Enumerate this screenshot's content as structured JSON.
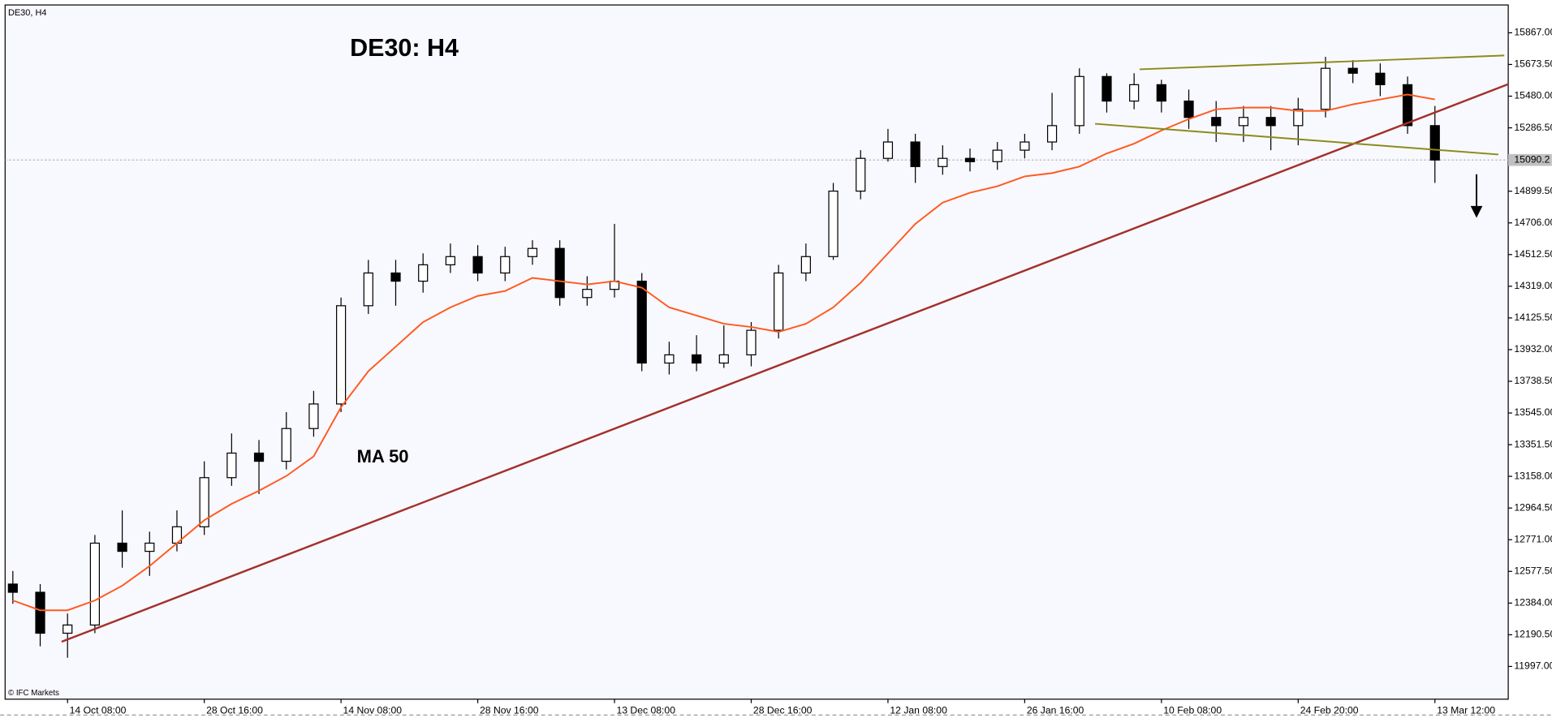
{
  "chart_data": {
    "type": "candlestick",
    "title": "DE30: H4",
    "symbol_label": "DE30, H4",
    "source": "© IFC Markets",
    "categories": [
      null,
      null,
      "14 Oct 08:00",
      null,
      null,
      null,
      null,
      "28 Oct 16:00",
      null,
      null,
      null,
      null,
      "14 Nov 08:00",
      null,
      null,
      null,
      null,
      "28 Nov 16:00",
      null,
      null,
      null,
      null,
      "13 Dec 08:00",
      null,
      null,
      null,
      null,
      "28 Dec 16:00",
      null,
      null,
      null,
      null,
      "12 Jan 08:00",
      null,
      null,
      null,
      null,
      "26 Jan 16:00",
      null,
      null,
      null,
      null,
      "10 Feb 08:00",
      null,
      null,
      null,
      null,
      "24 Feb 20:00",
      null,
      null,
      null,
      null,
      "13 Mar 12:00"
    ],
    "open": [
      12500,
      12450,
      12200,
      12250,
      12750,
      12700,
      12750,
      12850,
      13150,
      13300,
      13250,
      13450,
      13600,
      14200,
      14400,
      14350,
      14450,
      14500,
      14400,
      14500,
      14550,
      14250,
      14300,
      14350,
      13850,
      13900,
      13850,
      13900,
      14050,
      14400,
      14500,
      14900,
      15100,
      15200,
      15050,
      15100,
      15080,
      15150,
      15200,
      15300,
      15600,
      15450,
      15550,
      15450,
      15350,
      15300,
      15350,
      15300,
      15400,
      15650,
      15620,
      15550,
      15300
    ],
    "high": [
      12580,
      12500,
      12320,
      12800,
      12950,
      12820,
      12950,
      13250,
      13420,
      13380,
      13550,
      13680,
      14250,
      14480,
      14480,
      14520,
      14580,
      14570,
      14560,
      14600,
      14600,
      14380,
      14700,
      14400,
      13980,
      14020,
      14080,
      14100,
      14450,
      14580,
      14950,
      15150,
      15280,
      15250,
      15180,
      15160,
      15200,
      15250,
      15500,
      15650,
      15620,
      15620,
      15580,
      15520,
      15450,
      15420,
      15420,
      15470,
      15720,
      15700,
      15680,
      15600,
      15420
    ],
    "low": [
      12380,
      12120,
      12050,
      12200,
      12600,
      12550,
      12700,
      12800,
      13100,
      13050,
      13200,
      13400,
      13550,
      14150,
      14200,
      14280,
      14400,
      14350,
      14350,
      14450,
      14200,
      14200,
      14250,
      13800,
      13780,
      13800,
      13820,
      13830,
      14000,
      14350,
      14480,
      14850,
      15080,
      14950,
      15000,
      15020,
      15030,
      15100,
      15150,
      15250,
      15380,
      15400,
      15380,
      15280,
      15200,
      15200,
      15150,
      15180,
      15350,
      15560,
      15480,
      15250,
      14950
    ],
    "close": [
      12450,
      12200,
      12250,
      12750,
      12700,
      12750,
      12850,
      13150,
      13300,
      13250,
      13450,
      13600,
      14200,
      14400,
      14350,
      14450,
      14500,
      14400,
      14500,
      14550,
      14250,
      14300,
      14350,
      13850,
      13900,
      13850,
      13900,
      14050,
      14400,
      14500,
      14900,
      15100,
      15200,
      15050,
      15100,
      15080,
      15150,
      15200,
      15300,
      15600,
      15450,
      15550,
      15450,
      15350,
      15300,
      15350,
      15300,
      15400,
      15650,
      15620,
      15550,
      15300,
      15090
    ],
    "up_color": "#ffffff",
    "down_color": "#000000",
    "series": [
      {
        "name": "MA 50",
        "color": "#ff5a1e",
        "values": [
          12400,
          12340,
          12340,
          12400,
          12490,
          12610,
          12750,
          12890,
          12990,
          13070,
          13160,
          13280,
          13580,
          13800,
          13950,
          14100,
          14190,
          14260,
          14290,
          14370,
          14350,
          14330,
          14350,
          14310,
          14190,
          14140,
          14090,
          14070,
          14040,
          14090,
          14190,
          14340,
          14520,
          14700,
          14830,
          14890,
          14930,
          14990,
          15010,
          15050,
          15130,
          15190,
          15270,
          15340,
          15400,
          15410,
          15410,
          15390,
          15390,
          15430,
          15460,
          15490,
          15460
        ]
      }
    ],
    "current_price": 15090.2,
    "ylim": [
      11797,
      16037
    ],
    "yticks": [
      {
        "value": 11997,
        "label": "11997.00"
      },
      {
        "value": 12190.5,
        "label": "12190.50"
      },
      {
        "value": 12384,
        "label": "12384.00"
      },
      {
        "value": 12577.5,
        "label": "12577.50"
      },
      {
        "value": 12771,
        "label": "12771.00"
      },
      {
        "value": 12964.5,
        "label": "12964.50"
      },
      {
        "value": 13158,
        "label": "13158.00"
      },
      {
        "value": 13351.5,
        "label": "13351.50"
      },
      {
        "value": 13545,
        "label": "13545.00"
      },
      {
        "value": 13738.5,
        "label": "13738.50"
      },
      {
        "value": 13932,
        "label": "13932.00"
      },
      {
        "value": 14125.5,
        "label": "14125.50"
      },
      {
        "value": 14319,
        "label": "14319.00"
      },
      {
        "value": 14512.5,
        "label": "14512.50"
      },
      {
        "value": 14706,
        "label": "14706.00"
      },
      {
        "value": 14899.5,
        "label": "14899.50"
      },
      {
        "value": 15286.5,
        "label": "15286.50"
      },
      {
        "value": 15480,
        "label": "15480.00"
      },
      {
        "value": 15673.5,
        "label": "15673.50"
      },
      {
        "value": 15867,
        "label": "15867.00"
      }
    ],
    "grid": false
  }
}
